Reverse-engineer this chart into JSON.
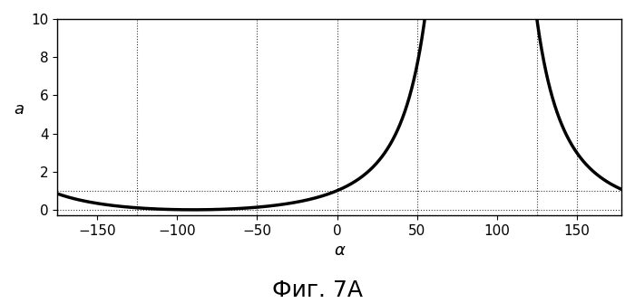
{
  "title": "Фиг. 7А",
  "xlabel": "α",
  "ylabel": "a",
  "xlim": [
    -175,
    178
  ],
  "ylim": [
    -0.3,
    10
  ],
  "yticks": [
    0,
    2,
    4,
    6,
    8,
    10
  ],
  "xticks": [
    -150,
    -100,
    -50,
    0,
    50,
    100,
    150
  ],
  "hlines": [
    0,
    1
  ],
  "vlines": [
    -125,
    -50,
    0,
    50,
    125,
    150
  ],
  "line_color": "#000000",
  "line_width": 2.5,
  "background_color": "#ffffff",
  "title_fontsize": 18,
  "label_fontsize": 13,
  "tick_fontsize": 11
}
